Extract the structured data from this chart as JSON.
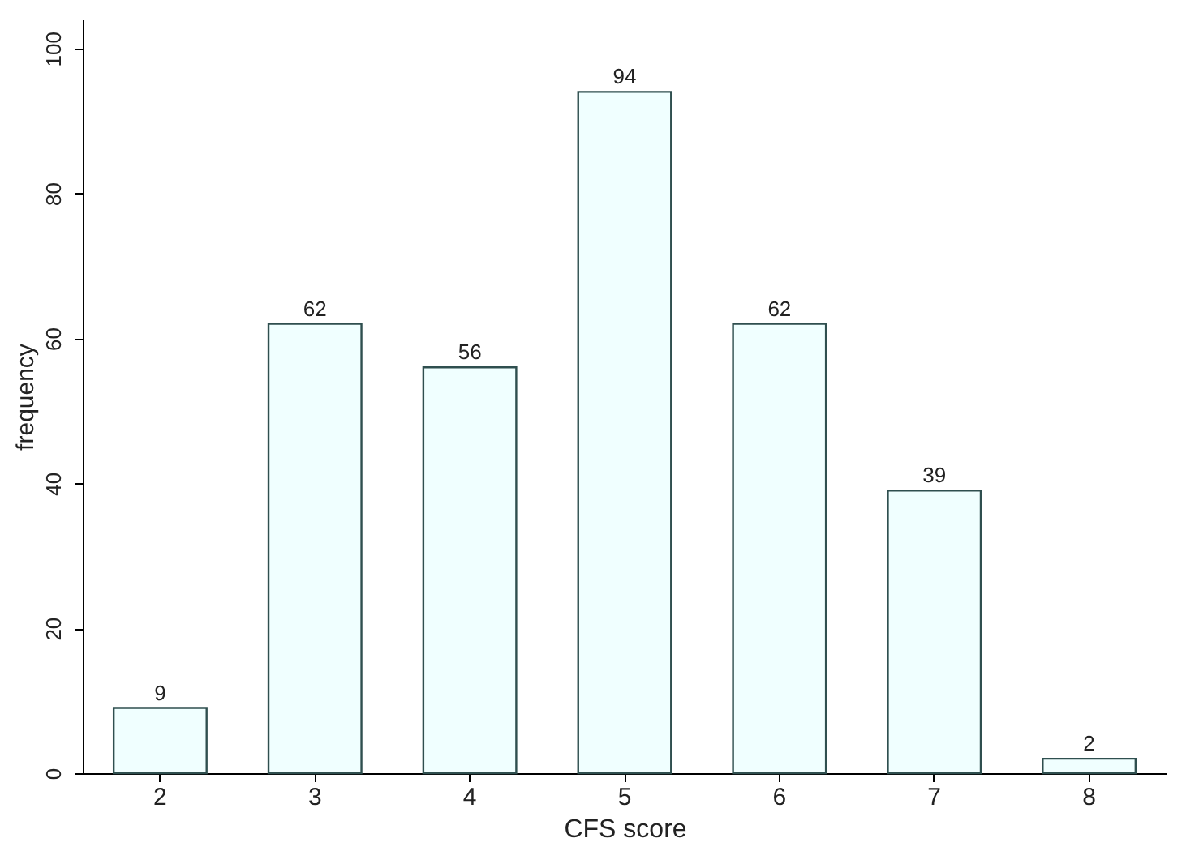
{
  "chart_data": {
    "type": "bar",
    "xlabel": "CFS score",
    "ylabel": "frequency",
    "categories": [
      "2",
      "3",
      "4",
      "5",
      "6",
      "7",
      "8"
    ],
    "values": [
      9,
      62,
      56,
      94,
      62,
      39,
      2
    ],
    "color": "#f0ffff",
    "ylim": [
      0,
      104
    ],
    "yticks": [
      0,
      20,
      40,
      60,
      80,
      100
    ],
    "data_labels": true,
    "grid": false
  }
}
